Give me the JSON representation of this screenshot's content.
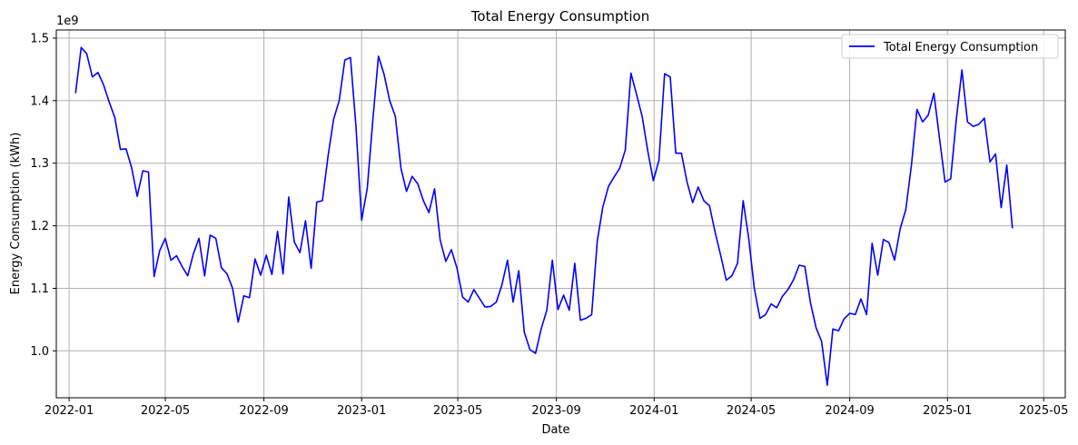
{
  "chart_data": {
    "type": "line",
    "title": "Total Energy Consumption",
    "xlabel": "Date",
    "ylabel": "Energy Consumption (kWh)",
    "y_offset_label": "1e9",
    "y_multiplier": 1000000000,
    "xlim": [
      "2021-12-16",
      "2025-05-28"
    ],
    "ylim": [
      0.925,
      1.513
    ],
    "x_ticks": [
      "2022-01-01",
      "2022-05-01",
      "2022-09-01",
      "2023-01-01",
      "2023-05-01",
      "2023-09-01",
      "2024-01-01",
      "2024-05-01",
      "2024-09-01",
      "2025-01-01",
      "2025-05-01"
    ],
    "x_tick_labels": [
      "2022-01",
      "2022-05",
      "2022-09",
      "2023-01",
      "2023-05",
      "2023-09",
      "2024-01",
      "2024-05",
      "2024-09",
      "2025-01",
      "2025-05"
    ],
    "y_ticks": [
      1.0,
      1.1,
      1.2,
      1.3,
      1.4,
      1.5
    ],
    "y_tick_labels": [
      "1.0",
      "1.1",
      "1.2",
      "1.3",
      "1.4",
      "1.5"
    ],
    "grid": true,
    "legend_position": "top-right",
    "series": [
      {
        "name": "Total Energy Consumption",
        "color": "#0000ff",
        "x": [
          "2022-01-09",
          "2022-01-16",
          "2022-01-23",
          "2022-01-30",
          "2022-02-06",
          "2022-02-13",
          "2022-02-20",
          "2022-02-27",
          "2022-03-06",
          "2022-03-13",
          "2022-03-20",
          "2022-03-27",
          "2022-04-03",
          "2022-04-10",
          "2022-04-17",
          "2022-04-24",
          "2022-05-01",
          "2022-05-08",
          "2022-05-15",
          "2022-05-22",
          "2022-05-29",
          "2022-06-05",
          "2022-06-12",
          "2022-06-19",
          "2022-06-26",
          "2022-07-03",
          "2022-07-10",
          "2022-07-17",
          "2022-07-24",
          "2022-07-31",
          "2022-08-07",
          "2022-08-14",
          "2022-08-21",
          "2022-08-28",
          "2022-09-04",
          "2022-09-11",
          "2022-09-18",
          "2022-09-25",
          "2022-10-02",
          "2022-10-09",
          "2022-10-16",
          "2022-10-23",
          "2022-10-30",
          "2022-11-06",
          "2022-11-13",
          "2022-11-20",
          "2022-11-27",
          "2022-12-04",
          "2022-12-11",
          "2022-12-18",
          "2022-12-25",
          "2023-01-01",
          "2023-01-08",
          "2023-01-15",
          "2023-01-22",
          "2023-01-29",
          "2023-02-05",
          "2023-02-12",
          "2023-02-19",
          "2023-02-26",
          "2023-03-05",
          "2023-03-12",
          "2023-03-19",
          "2023-03-26",
          "2023-04-02",
          "2023-04-09",
          "2023-04-16",
          "2023-04-23",
          "2023-04-30",
          "2023-05-07",
          "2023-05-14",
          "2023-05-21",
          "2023-05-28",
          "2023-06-04",
          "2023-06-11",
          "2023-06-18",
          "2023-06-25",
          "2023-07-02",
          "2023-07-09",
          "2023-07-16",
          "2023-07-23",
          "2023-07-30",
          "2023-08-06",
          "2023-08-13",
          "2023-08-20",
          "2023-08-27",
          "2023-09-03",
          "2023-09-10",
          "2023-09-17",
          "2023-09-24",
          "2023-10-01",
          "2023-10-08",
          "2023-10-15",
          "2023-10-22",
          "2023-10-29",
          "2023-11-05",
          "2023-11-12",
          "2023-11-19",
          "2023-11-26",
          "2023-12-03",
          "2023-12-10",
          "2023-12-17",
          "2023-12-24",
          "2023-12-31",
          "2024-01-07",
          "2024-01-14",
          "2024-01-21",
          "2024-01-28",
          "2024-02-04",
          "2024-02-11",
          "2024-02-18",
          "2024-02-25",
          "2024-03-03",
          "2024-03-10",
          "2024-03-17",
          "2024-03-24",
          "2024-03-31",
          "2024-04-07",
          "2024-04-14",
          "2024-04-21",
          "2024-04-28",
          "2024-05-05",
          "2024-05-12",
          "2024-05-19",
          "2024-05-26",
          "2024-06-02",
          "2024-06-09",
          "2024-06-16",
          "2024-06-23",
          "2024-06-30",
          "2024-07-07",
          "2024-07-14",
          "2024-07-21",
          "2024-07-28",
          "2024-08-04",
          "2024-08-11",
          "2024-08-18",
          "2024-08-25",
          "2024-09-01",
          "2024-09-08",
          "2024-09-15",
          "2024-09-22",
          "2024-09-29",
          "2024-10-06",
          "2024-10-13",
          "2024-10-20",
          "2024-10-27",
          "2024-11-03",
          "2024-11-10",
          "2024-11-17",
          "2024-11-24",
          "2024-12-01",
          "2024-12-08",
          "2024-12-15",
          "2024-12-22",
          "2024-12-29",
          "2025-01-05",
          "2025-01-12",
          "2025-01-19",
          "2025-01-26",
          "2025-02-02",
          "2025-02-09",
          "2025-02-16",
          "2025-02-23",
          "2025-03-02",
          "2025-03-09",
          "2025-03-16",
          "2025-03-23"
        ],
        "values": [
          1.412,
          1.485,
          1.475,
          1.438,
          1.445,
          1.425,
          1.398,
          1.373,
          1.322,
          1.323,
          1.293,
          1.247,
          1.288,
          1.286,
          1.119,
          1.16,
          1.18,
          1.145,
          1.152,
          1.135,
          1.12,
          1.155,
          1.18,
          1.12,
          1.185,
          1.18,
          1.133,
          1.123,
          1.1,
          1.046,
          1.088,
          1.085,
          1.147,
          1.121,
          1.153,
          1.122,
          1.191,
          1.123,
          1.246,
          1.174,
          1.157,
          1.208,
          1.132,
          1.238,
          1.24,
          1.31,
          1.37,
          1.4,
          1.465,
          1.469,
          1.358,
          1.209,
          1.26,
          1.37,
          1.471,
          1.442,
          1.4,
          1.375,
          1.292,
          1.255,
          1.279,
          1.267,
          1.24,
          1.221,
          1.259,
          1.177,
          1.143,
          1.162,
          1.132,
          1.086,
          1.078,
          1.098,
          1.084,
          1.07,
          1.071,
          1.078,
          1.105,
          1.145,
          1.078,
          1.128,
          1.03,
          1.002,
          0.996,
          1.035,
          1.065,
          1.145,
          1.066,
          1.089,
          1.065,
          1.14,
          1.049,
          1.052,
          1.058,
          1.176,
          1.23,
          1.263,
          1.278,
          1.292,
          1.321,
          1.444,
          1.41,
          1.375,
          1.32,
          1.272,
          1.305,
          1.443,
          1.438,
          1.316,
          1.316,
          1.27,
          1.237,
          1.262,
          1.24,
          1.232,
          1.19,
          1.153,
          1.113,
          1.12,
          1.14,
          1.24,
          1.18,
          1.1,
          1.052,
          1.058,
          1.075,
          1.069,
          1.087,
          1.098,
          1.114,
          1.137,
          1.135,
          1.077,
          1.037,
          1.015,
          0.945,
          1.035,
          1.032,
          1.051,
          1.06,
          1.058,
          1.083,
          1.058,
          1.172,
          1.121,
          1.178,
          1.173,
          1.145,
          1.195,
          1.226,
          1.297,
          1.386,
          1.366,
          1.377,
          1.412,
          1.34,
          1.27,
          1.275,
          1.37,
          1.449,
          1.366,
          1.359,
          1.362,
          1.372,
          1.302,
          1.315,
          1.229,
          1.297,
          1.196
        ]
      }
    ]
  }
}
